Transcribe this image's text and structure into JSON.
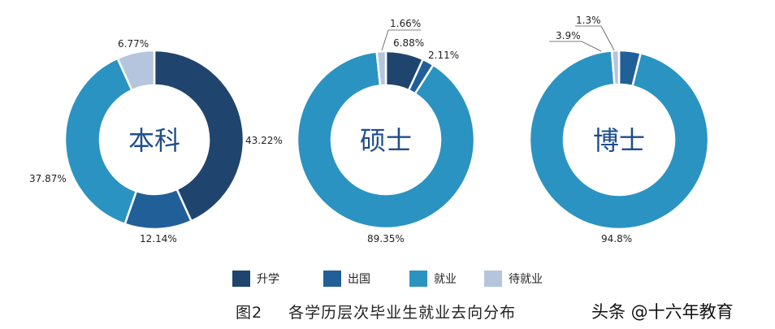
{
  "chart_data": [
    {
      "type": "pie",
      "subtype": "donut",
      "title": "本科",
      "categories": [
        "升学",
        "出国",
        "就业",
        "待就业"
      ],
      "values": [
        43.22,
        12.14,
        37.87,
        6.77
      ],
      "labels": [
        "43.22%",
        "12.14%",
        "37.87%",
        "6.77%"
      ],
      "colors": [
        "#1f456e",
        "#215f99",
        "#2b93c1",
        "#b5c5dd"
      ]
    },
    {
      "type": "pie",
      "subtype": "donut",
      "title": "硕士",
      "categories": [
        "升学",
        "出国",
        "就业",
        "待就业"
      ],
      "values": [
        6.88,
        2.11,
        89.35,
        1.66
      ],
      "labels": [
        "6.88%",
        "2.11%",
        "89.35%",
        "1.66%"
      ],
      "colors": [
        "#1f456e",
        "#215f99",
        "#2b93c1",
        "#b5c5dd"
      ]
    },
    {
      "type": "pie",
      "subtype": "donut",
      "title": "博士",
      "categories": [
        "升学",
        "出国",
        "就业",
        "待就业"
      ],
      "values": [
        0,
        3.9,
        94.8,
        1.3
      ],
      "labels": [
        "",
        "3.9%",
        "94.8%",
        "1.3%"
      ],
      "colors": [
        "#1f456e",
        "#215f99",
        "#2b93c1",
        "#b5c5dd"
      ]
    }
  ],
  "legend": [
    {
      "label": "升学",
      "color": "#1f456e"
    },
    {
      "label": "出国",
      "color": "#215f99"
    },
    {
      "label": "就业",
      "color": "#2b93c1"
    },
    {
      "label": "待就业",
      "color": "#b5c5dd"
    }
  ],
  "caption": {
    "number": "图2",
    "text": "各学历层次毕业生就业去向分布"
  },
  "watermark": "头条 @十六年教育"
}
